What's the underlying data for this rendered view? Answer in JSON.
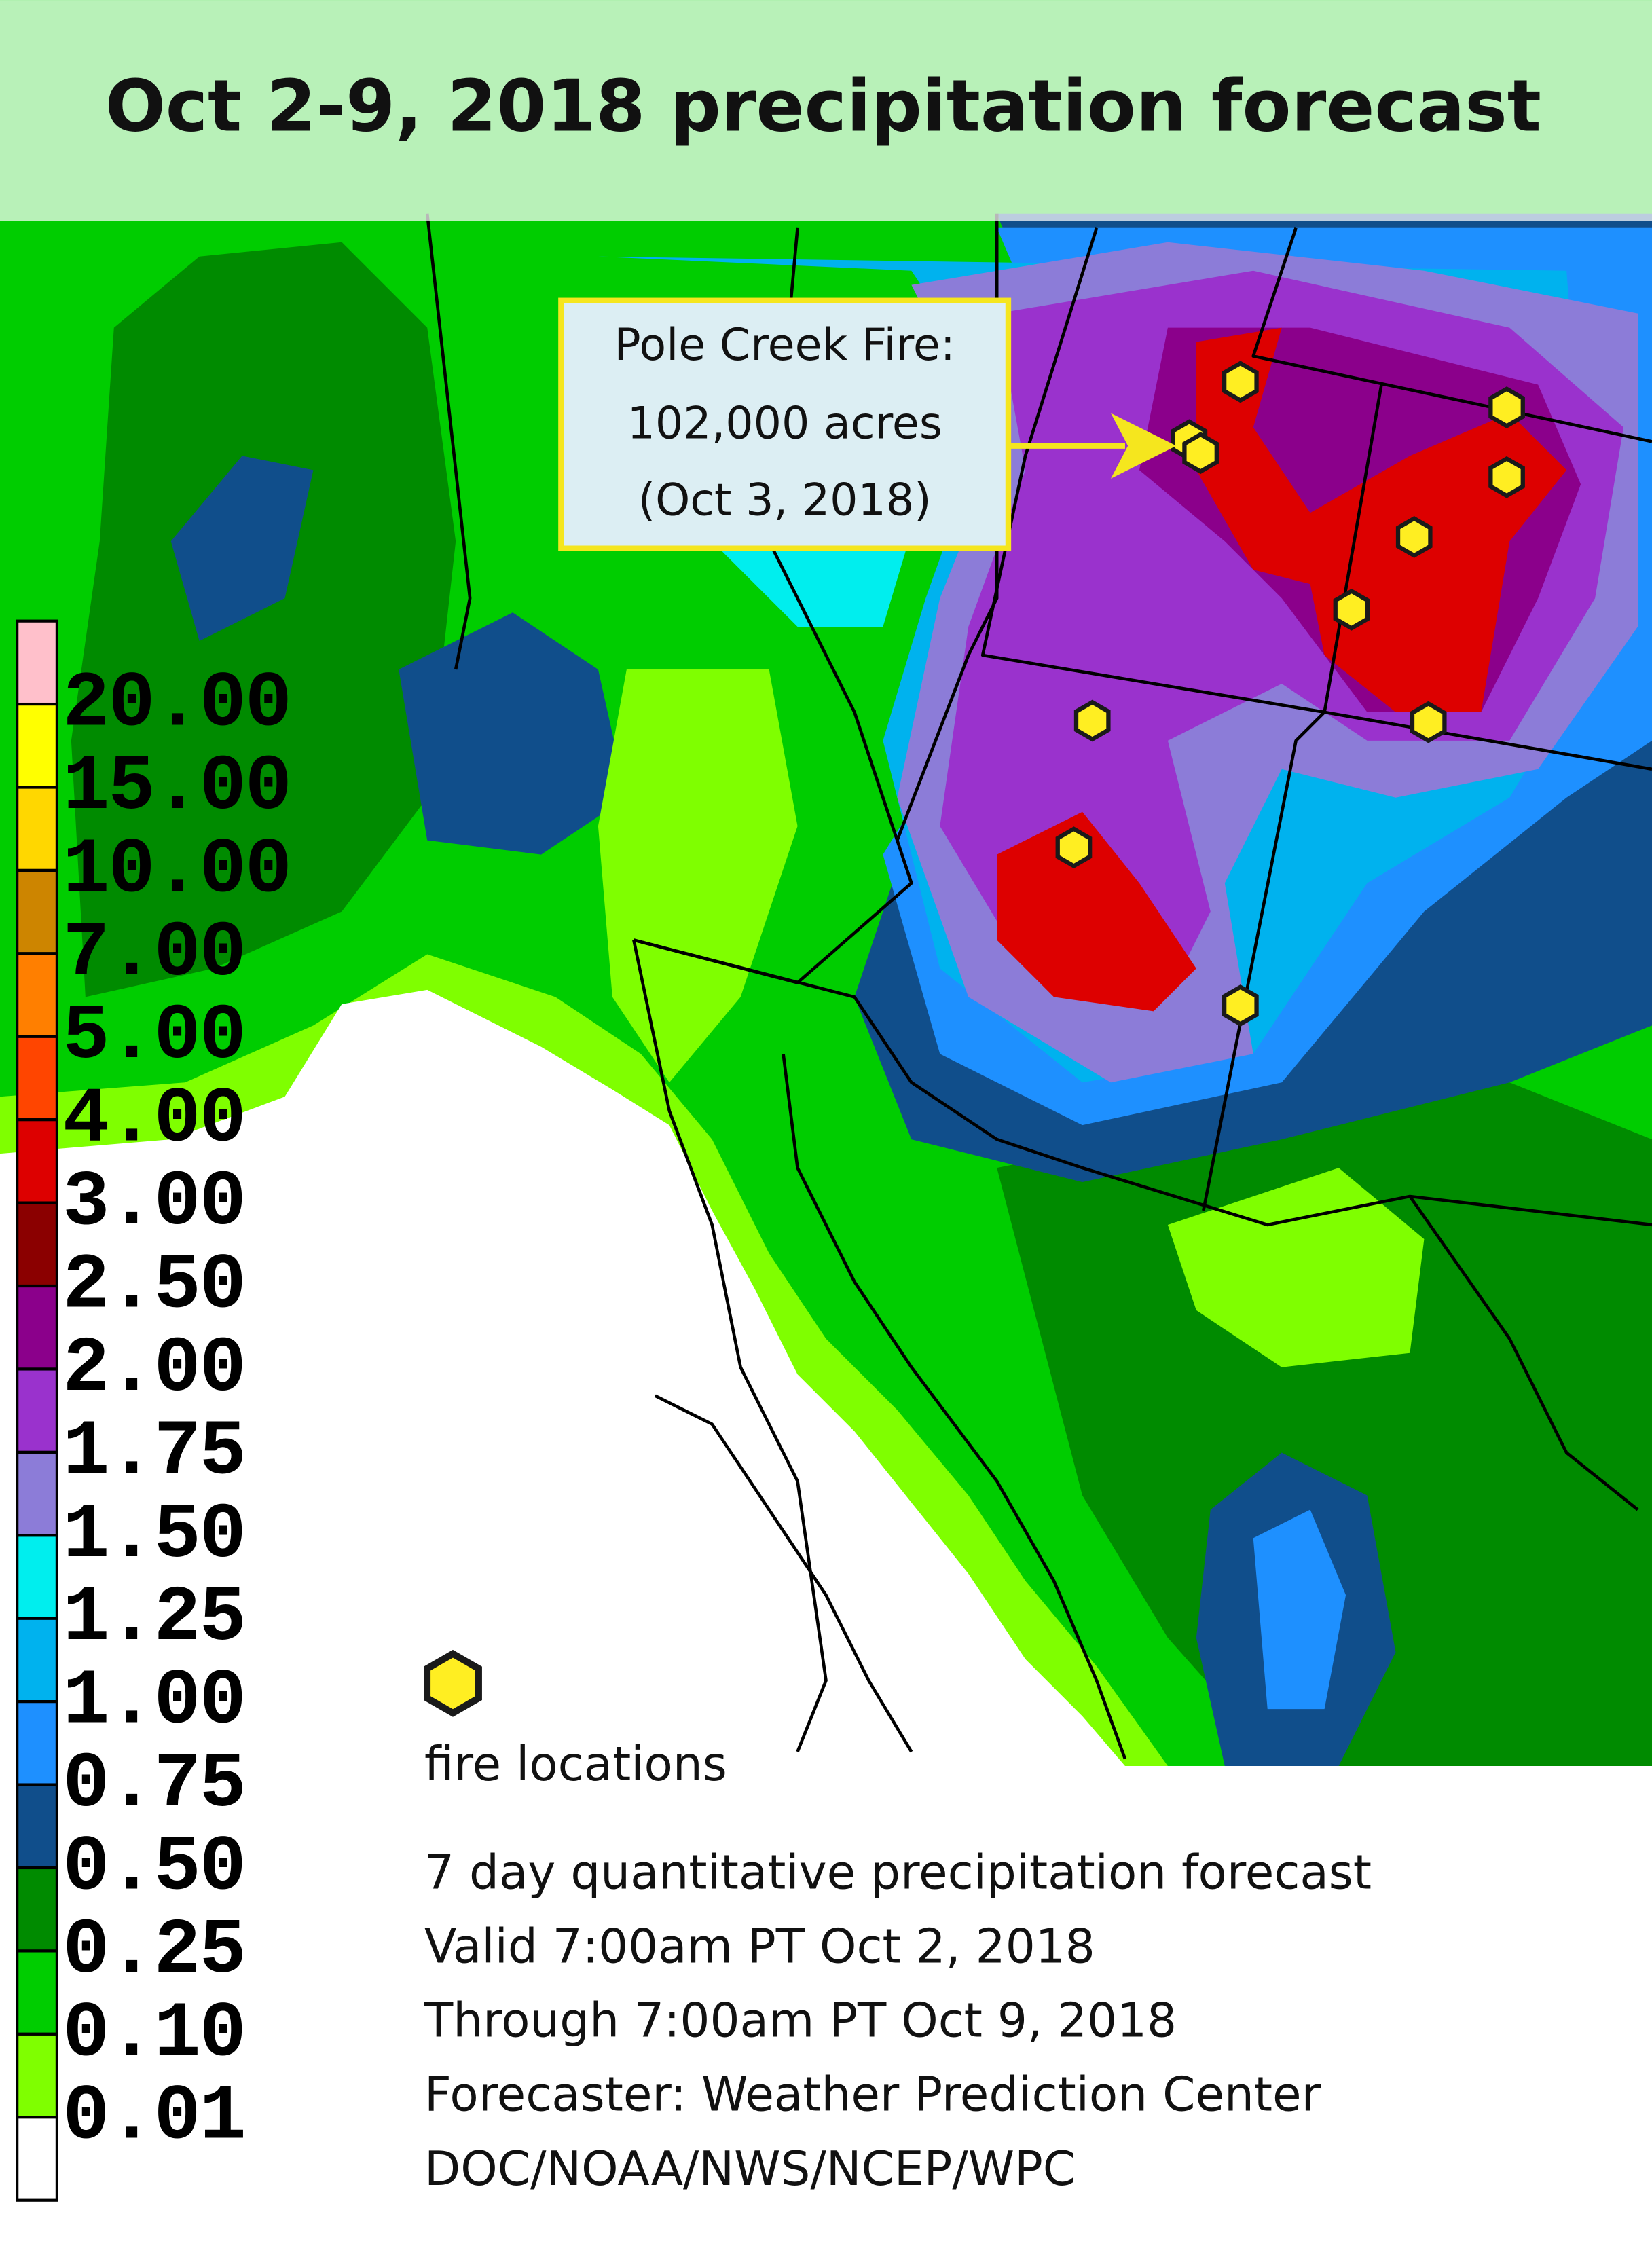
{
  "title": "Oct 2-9, 2018 precipitation forecast",
  "callout": {
    "lines": [
      "Pole Creek Fire:",
      "102,000 acres",
      "(Oct 3, 2018)"
    ]
  },
  "legend": {
    "colors": [
      "#ffc0cb",
      "#ffff00",
      "#ffd700",
      "#cd8500",
      "#ff7f00",
      "#ff4500",
      "#dd0000",
      "#8b0000",
      "#8b008b",
      "#9a32cd",
      "#8c7cd8",
      "#00eeee",
      "#00b2ee",
      "#1e90ff",
      "#104e8b",
      "#008b00",
      "#00cd00",
      "#7fff00",
      "#ffffff"
    ],
    "labels": [
      "20.00",
      "15.00",
      "10.00",
      "7.00",
      "5.00",
      "4.00",
      "3.00",
      "2.50",
      "2.00",
      "1.75",
      "1.50",
      "1.25",
      "1.00",
      "0.75",
      "0.50",
      "0.25",
      "0.10",
      "0.01"
    ]
  },
  "marker_label": "fire locations",
  "info": [
    "7 day quantitative precipitation forecast",
    "Valid 7:00am PT Oct 2, 2018",
    "Through 7:00am PT Oct 9, 2018",
    "Forecaster: Weather Prediction Center",
    "DOC/NOAA/NWS/NCEP/WPC"
  ]
}
